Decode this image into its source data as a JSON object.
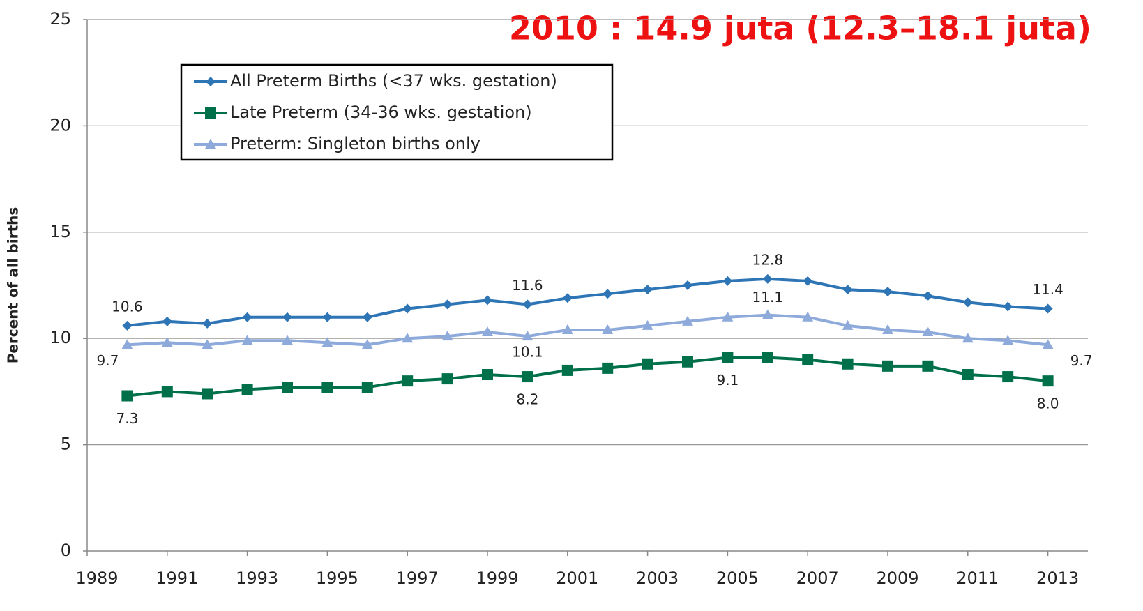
{
  "chart_data": {
    "type": "line",
    "title": "2010 : 14.9 juta  (12.3–18.1 juta)",
    "y_label": "Percent of all births",
    "x": [
      1990,
      1991,
      1992,
      1993,
      1994,
      1995,
      1996,
      1997,
      1998,
      1999,
      2000,
      2001,
      2002,
      2003,
      2004,
      2005,
      2006,
      2007,
      2008,
      2009,
      2010,
      2011,
      2012,
      2013
    ],
    "xlim": [
      1989,
      2014
    ],
    "xticks": [
      1989,
      1991,
      1993,
      1995,
      1997,
      1999,
      2001,
      2003,
      2005,
      2007,
      2009,
      2011,
      2013
    ],
    "ylim": [
      0,
      25
    ],
    "yticks": [
      0,
      5,
      10,
      15,
      20,
      25
    ],
    "grid": true,
    "series": [
      {
        "name": "All Preterm Births (<37 wks. gestation)",
        "color": "#2e75b6",
        "marker": "diamond",
        "values": [
          10.6,
          10.8,
          10.7,
          11.0,
          11.0,
          11.0,
          11.0,
          11.4,
          11.6,
          11.8,
          11.6,
          11.9,
          12.1,
          12.3,
          12.5,
          12.7,
          12.8,
          12.7,
          12.3,
          12.2,
          12.0,
          11.7,
          11.5,
          11.4
        ],
        "value_labels": [
          "10.6",
          null,
          null,
          null,
          null,
          null,
          null,
          null,
          null,
          null,
          "11.6",
          null,
          null,
          null,
          null,
          null,
          "12.8",
          null,
          null,
          null,
          null,
          null,
          null,
          "11.4"
        ]
      },
      {
        "name": "Late Preterm (34-36 wks. gestation)",
        "color": "#00704a",
        "marker": "square",
        "values": [
          7.3,
          7.5,
          7.4,
          7.6,
          7.7,
          7.7,
          7.7,
          8.0,
          8.1,
          8.3,
          8.2,
          8.5,
          8.6,
          8.8,
          8.9,
          9.1,
          9.1,
          9.0,
          8.8,
          8.7,
          8.7,
          8.3,
          8.2,
          8.0
        ],
        "value_labels": [
          "7.3",
          null,
          null,
          null,
          null,
          null,
          null,
          null,
          null,
          null,
          "8.2",
          null,
          null,
          null,
          null,
          "9.1",
          null,
          null,
          null,
          null,
          null,
          null,
          null,
          "8.0"
        ]
      },
      {
        "name": "Preterm: Singleton births only",
        "color": "#8eaadb",
        "marker": "triangle",
        "values": [
          9.7,
          9.8,
          9.7,
          9.9,
          9.9,
          9.8,
          9.7,
          10.0,
          10.1,
          10.3,
          10.1,
          10.4,
          10.4,
          10.6,
          10.8,
          11.0,
          11.1,
          11.0,
          10.6,
          10.4,
          10.3,
          10.0,
          9.9,
          9.7
        ],
        "value_labels": [
          "9.7",
          null,
          null,
          null,
          null,
          null,
          null,
          null,
          null,
          null,
          "10.1",
          null,
          null,
          null,
          null,
          null,
          "11.1",
          null,
          null,
          null,
          null,
          null,
          null,
          "9.7"
        ]
      }
    ]
  }
}
